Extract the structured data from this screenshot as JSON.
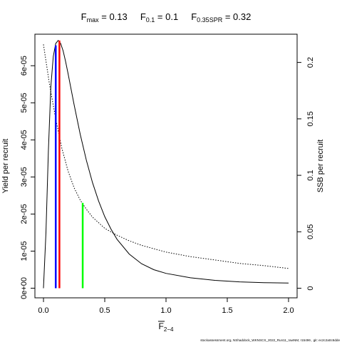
{
  "chart_data": {
    "type": "line",
    "title_parts": [
      {
        "base": "F",
        "sub": "max",
        "value": " = 0.13"
      },
      {
        "base": "F",
        "sub": "0.1",
        "value": " = 0.1"
      },
      {
        "base": "F",
        "sub": "0.35SPR",
        "value": " = 0.32"
      }
    ],
    "xlabel": {
      "base": "F",
      "sub": "2−4",
      "overline": true
    },
    "ylabel_left": "Yield per recruit",
    "ylabel_right": "SSB per recruit",
    "footer": "stockassessment.org, NShaddock_WKNSCS_2022_Run11_rawNM, r15496 , git: ec2c2a0c6dde",
    "xlim": [
      -0.07,
      2.07
    ],
    "ylim_left": [
      -2.6e-06,
      6.85e-05
    ],
    "ylim_right": [
      -0.0085,
      0.225
    ],
    "x_ticks": [
      {
        "value": 0.0,
        "label": "0.0"
      },
      {
        "value": 0.5,
        "label": "0.5"
      },
      {
        "value": 1.0,
        "label": "1.0"
      },
      {
        "value": 1.5,
        "label": "1.5"
      },
      {
        "value": 2.0,
        "label": "2.0"
      }
    ],
    "y_ticks_left": [
      {
        "value": 0,
        "label": "0e+00"
      },
      {
        "value": 1e-05,
        "label": "1e-05"
      },
      {
        "value": 2e-05,
        "label": "2e-05"
      },
      {
        "value": 3e-05,
        "label": "3e-05"
      },
      {
        "value": 4e-05,
        "label": "4e-05"
      },
      {
        "value": 5e-05,
        "label": "5e-05"
      },
      {
        "value": 6e-05,
        "label": "6e-05"
      }
    ],
    "y_ticks_right": [
      {
        "value": 0,
        "label": "0"
      },
      {
        "value": 0.05,
        "label": "0.05"
      },
      {
        "value": 0.1,
        "label": "0.1"
      },
      {
        "value": 0.15,
        "label": "0.15"
      },
      {
        "value": 0.2,
        "label": "0.2"
      }
    ],
    "series": [
      {
        "axis": "left",
        "style": "solid",
        "color": "#000000",
        "x": [
          0.0,
          0.02,
          0.04,
          0.06,
          0.08,
          0.1,
          0.12,
          0.14,
          0.16,
          0.18,
          0.2,
          0.25,
          0.3,
          0.35,
          0.4,
          0.45,
          0.5,
          0.55,
          0.6,
          0.7,
          0.8,
          0.9,
          1.0,
          1.2,
          1.4,
          1.6,
          1.8,
          2.0
        ],
        "y": [
          0.0,
          1.5e-05,
          3.7e-05,
          5.45e-05,
          6.25e-05,
          6.6e-05,
          6.68e-05,
          6.6e-05,
          6.4e-05,
          6.12e-05,
          5.8e-05,
          4.95e-05,
          4.15e-05,
          3.45e-05,
          2.85e-05,
          2.35e-05,
          1.93e-05,
          1.6e-05,
          1.32e-05,
          9.2e-06,
          6.6e-06,
          5e-06,
          4e-06,
          2.8e-06,
          2.1e-06,
          1.7e-06,
          1.5e-06,
          1.4e-06
        ]
      },
      {
        "axis": "right",
        "style": "dotted",
        "color": "#000000",
        "x": [
          0.0,
          0.05,
          0.1,
          0.15,
          0.2,
          0.25,
          0.3,
          0.35,
          0.4,
          0.5,
          0.6,
          0.7,
          0.8,
          1.0,
          1.2,
          1.4,
          1.6,
          1.8,
          2.0
        ],
        "y": [
          0.216,
          0.18,
          0.15,
          0.124,
          0.104,
          0.089,
          0.078,
          0.07,
          0.063,
          0.053,
          0.047,
          0.042,
          0.038,
          0.032,
          0.028,
          0.025,
          0.022,
          0.02,
          0.0175
        ]
      }
    ],
    "reference_lines": [
      {
        "name": "F0.1",
        "x": 0.1,
        "y_top": 6.55e-05,
        "color": "#0000ff"
      },
      {
        "name": "Fmax",
        "x": 0.13,
        "y_top": 6.68e-05,
        "color": "#ff0000"
      },
      {
        "name": "F0.35SPR",
        "x": 0.32,
        "y_top": 2.3e-05,
        "color": "#00ff00"
      }
    ]
  }
}
